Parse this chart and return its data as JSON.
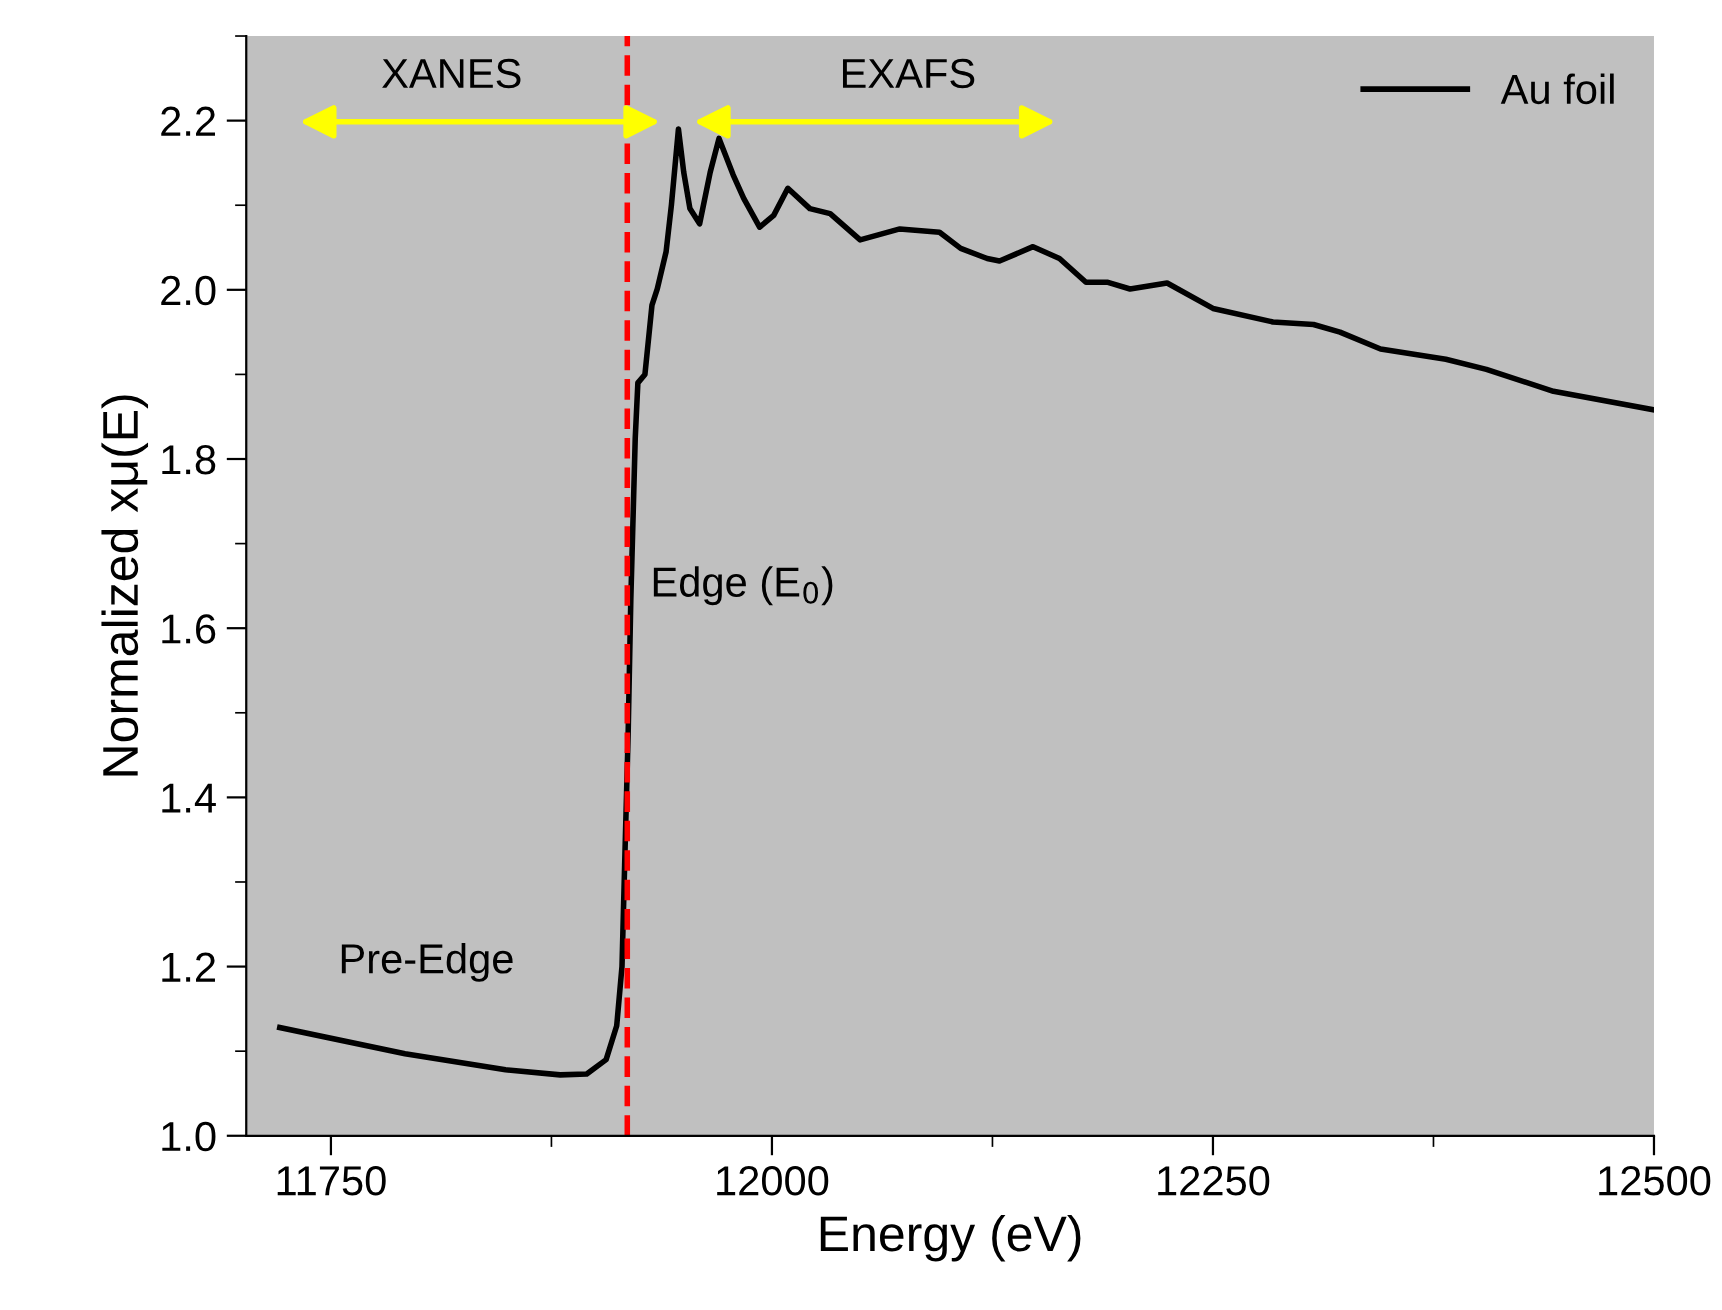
{
  "chart_data": {
    "type": "line",
    "xlabel": "Energy (eV)",
    "ylabel": "Normalized xμ(E)",
    "xlim": [
      11702,
      12500
    ],
    "ylim": [
      1.0,
      2.3
    ],
    "xticks": [
      11750,
      12000,
      12250,
      12500
    ],
    "yticks": [
      {
        "value": 1.0,
        "label": "1.0"
      },
      1.2,
      1.4,
      1.6,
      1.8,
      {
        "value": 2.0,
        "label": "2.0"
      },
      2.2
    ],
    "legend": "top right",
    "grid": false,
    "marker": "none",
    "line_style": "solid",
    "series": [
      {
        "name": "Au foil",
        "color": "#000000",
        "x": [
          11721,
          11792,
          11849,
          11880,
          11895,
          11906,
          11912,
          11915,
          11916.5,
          11918.5,
          11920,
          11922.5,
          11924,
          11928,
          11932,
          11935,
          11940,
          11943,
          11947,
          11950,
          11953.5,
          11959,
          11965,
          11970,
          11978,
          11984,
          11993,
          12001,
          12009,
          12021.5,
          12033,
          12050,
          12072.5,
          12095,
          12107,
          12122,
          12129,
          12148,
          12163,
          12178,
          12190,
          12203,
          12224,
          12250,
          12284,
          12307,
          12322,
          12345,
          12382,
          12405,
          12443,
          12500
        ],
        "values": [
          1.128,
          1.097,
          1.078,
          1.072,
          1.073,
          1.09,
          1.13,
          1.2,
          1.32,
          1.476,
          1.634,
          1.824,
          1.89,
          1.9,
          1.982,
          2.001,
          2.045,
          2.1,
          2.19,
          2.139,
          2.096,
          2.078,
          2.139,
          2.179,
          2.136,
          2.108,
          2.074,
          2.088,
          2.12,
          2.096,
          2.09,
          2.059,
          2.072,
          2.068,
          2.049,
          2.037,
          2.034,
          2.051,
          2.037,
          2.009,
          2.009,
          2.001,
          2.008,
          1.978,
          1.962,
          1.959,
          1.95,
          1.93,
          1.918,
          1.906,
          1.88,
          1.858
        ]
      }
    ],
    "ref_lines": [
      {
        "axis": "x",
        "value": 11918,
        "label": "Edge (E$_{0}$)",
        "color": "#ff0000",
        "line_style": "dashed"
      }
    ],
    "annotations": [
      "XANES",
      "EXAFS",
      "Pre-Edge"
    ]
  }
}
